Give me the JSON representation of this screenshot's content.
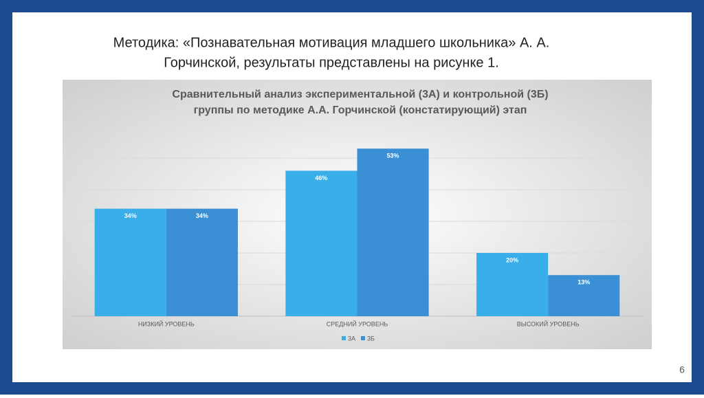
{
  "slide_title": [
    "Методика: «Познавательная мотивация младшего школьника» А. А.",
    "Горчинской, результаты представлены на рисунке 1."
  ],
  "page_number": "6",
  "chart_data": {
    "type": "bar",
    "title": [
      "Сравнительный анализ экспериментальной (3А) и контрольной (3Б)",
      "группы по методике А.А. Горчинской (констатирующий) этап"
    ],
    "categories": [
      "НИЗКИЙ УРОВЕНЬ",
      "СРЕДНИЙ УРОВЕНЬ",
      "ВЫСОКИЙ УРОВЕНЬ"
    ],
    "series": [
      {
        "name": "3А",
        "color": "#3aaee8",
        "values": [
          34,
          46,
          20
        ],
        "value_labels": [
          "34%",
          "46%",
          "20%"
        ]
      },
      {
        "name": "3Б",
        "color": "#3b8fd4",
        "values": [
          34,
          53,
          13
        ],
        "value_labels": [
          "34%",
          "53%",
          "13%"
        ]
      }
    ],
    "ylim": [
      0,
      60
    ],
    "yticks": [
      0,
      10,
      20,
      30,
      40,
      50
    ],
    "grid": true,
    "legend": "bottom"
  }
}
